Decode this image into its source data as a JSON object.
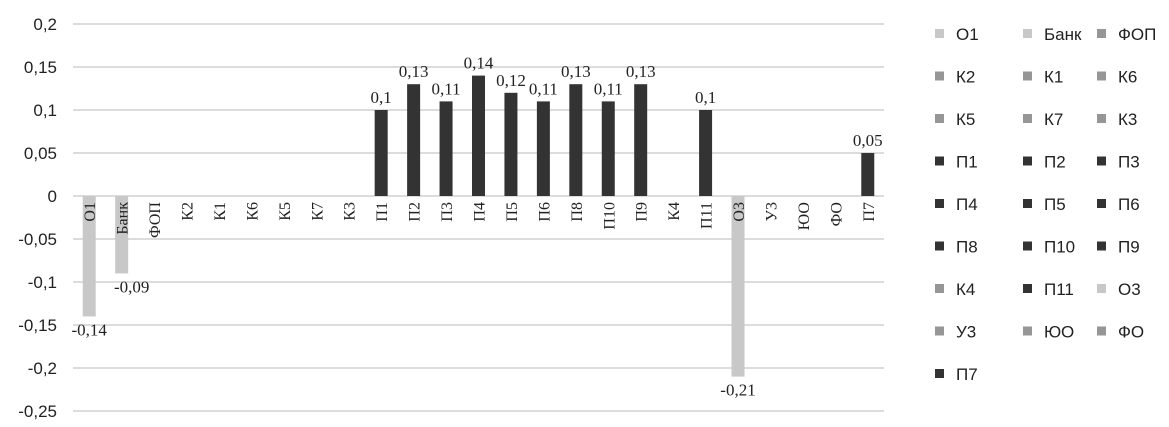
{
  "chart_data": {
    "type": "bar",
    "categories": [
      "О1",
      "Банк",
      "ФОП",
      "К2",
      "К1",
      "К6",
      "К5",
      "К7",
      "К3",
      "П1",
      "П2",
      "П3",
      "П4",
      "П5",
      "П6",
      "П8",
      "П10",
      "П9",
      "К4",
      "П11",
      "О3",
      "У3",
      "ЮО",
      "ФО",
      "П7"
    ],
    "values": [
      -0.14,
      -0.09,
      0,
      0,
      0,
      0,
      0,
      0,
      0,
      0.1,
      0.13,
      0.11,
      0.14,
      0.12,
      0.11,
      0.13,
      0.11,
      0.13,
      0,
      0.1,
      -0.21,
      0,
      0,
      0,
      0.05
    ],
    "value_labels": [
      "-0,14",
      "-0,09",
      "",
      "",
      "",
      "",
      "",
      "",
      "",
      "0,1",
      "0,13",
      "0,11",
      "0,14",
      "0,12",
      "0,11",
      "0,13",
      "0,11",
      "0,13",
      "",
      "0,1",
      "-0,21",
      "",
      "",
      "",
      "0,05"
    ],
    "ylim": [
      -0.25,
      0.2
    ],
    "yticks": [
      -0.25,
      -0.2,
      -0.15,
      -0.1,
      -0.05,
      0,
      0.05,
      0.1,
      0.15,
      0.2
    ],
    "ytick_labels": [
      "-0,25",
      "-0,2",
      "-0,15",
      "-0,1",
      "-0,05",
      "0",
      "0,05",
      "0,1",
      "0,15",
      "0,2"
    ],
    "title": "",
    "xlabel": "",
    "ylabel": "",
    "grid": "horizontal",
    "legend_position": "right",
    "colors": {
      "light_gray": "#c8c8c8",
      "mid_gray": "#969696",
      "dark": "#333333"
    },
    "category_colors": [
      "light_gray",
      "light_gray",
      "mid_gray",
      "mid_gray",
      "mid_gray",
      "mid_gray",
      "mid_gray",
      "mid_gray",
      "mid_gray",
      "dark",
      "dark",
      "dark",
      "dark",
      "dark",
      "dark",
      "dark",
      "dark",
      "dark",
      "mid_gray",
      "dark",
      "light_gray",
      "mid_gray",
      "mid_gray",
      "mid_gray",
      "dark"
    ]
  }
}
